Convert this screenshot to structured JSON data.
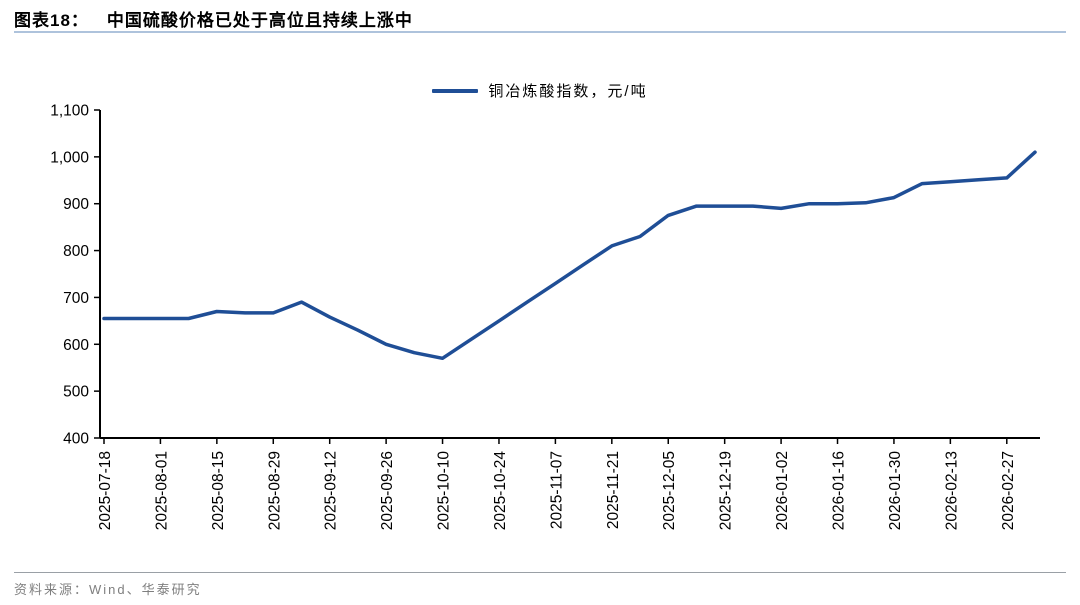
{
  "header": {
    "figure_label": "图表18：",
    "title": "中国硫酸价格已处于高位且持续上涨中"
  },
  "legend": {
    "label": "铜冶炼酸指数，元/吨"
  },
  "footer": {
    "source": "资料来源：Wind、华泰研究"
  },
  "colors": {
    "line": "#1f4e96",
    "axis": "#000000",
    "tick_text": "#404040",
    "title_rule": "#aec3dc",
    "footer_rule": "#9aa0a6",
    "footer_text": "#7f7f7f"
  },
  "chart_data": {
    "type": "line",
    "title": "中国硫酸价格已处于高位且持续上涨中",
    "series": [
      {
        "name": "铜冶炼酸指数，元/吨",
        "x": [
          "2025-07-18",
          "2025-07-25",
          "2025-08-01",
          "2025-08-08",
          "2025-08-15",
          "2025-08-22",
          "2025-08-29",
          "2025-09-05",
          "2025-09-12",
          "2025-09-19",
          "2025-09-26",
          "2025-10-03",
          "2025-10-10",
          "2025-10-17",
          "2025-10-24",
          "2025-10-31",
          "2025-11-07",
          "2025-11-14",
          "2025-11-21",
          "2025-11-28",
          "2025-12-05",
          "2025-12-12",
          "2025-12-19",
          "2025-12-26",
          "2026-01-02",
          "2026-01-09",
          "2026-01-16",
          "2026-01-23",
          "2026-01-30",
          "2026-02-06",
          "2026-02-13",
          "2026-02-20",
          "2026-02-27",
          "2026-03-06"
        ],
        "values": [
          655,
          655,
          655,
          655,
          670,
          667,
          667,
          690,
          658,
          630,
          600,
          582,
          570,
          610,
          650,
          690,
          730,
          770,
          810,
          830,
          875,
          895,
          895,
          895,
          890,
          900,
          900,
          902,
          913,
          943,
          947,
          951,
          955,
          1010
        ]
      }
    ],
    "x_tick_labels": [
      "2025-07-18",
      "2025-08-01",
      "2025-08-15",
      "2025-08-29",
      "2025-09-12",
      "2025-09-26",
      "2025-10-10",
      "2025-10-24",
      "2025-11-07",
      "2025-11-21",
      "2025-12-05",
      "2025-12-19",
      "2026-01-02",
      "2026-01-16",
      "2026-01-30",
      "2026-02-13",
      "2026-02-27"
    ],
    "x_tick_every": 2,
    "ylabel": "",
    "xlabel": "",
    "ylim": [
      400,
      1100
    ],
    "y_ticks": [
      400,
      500,
      600,
      700,
      800,
      900,
      1000,
      1100
    ],
    "grid": false,
    "legend_position": "top-center"
  }
}
